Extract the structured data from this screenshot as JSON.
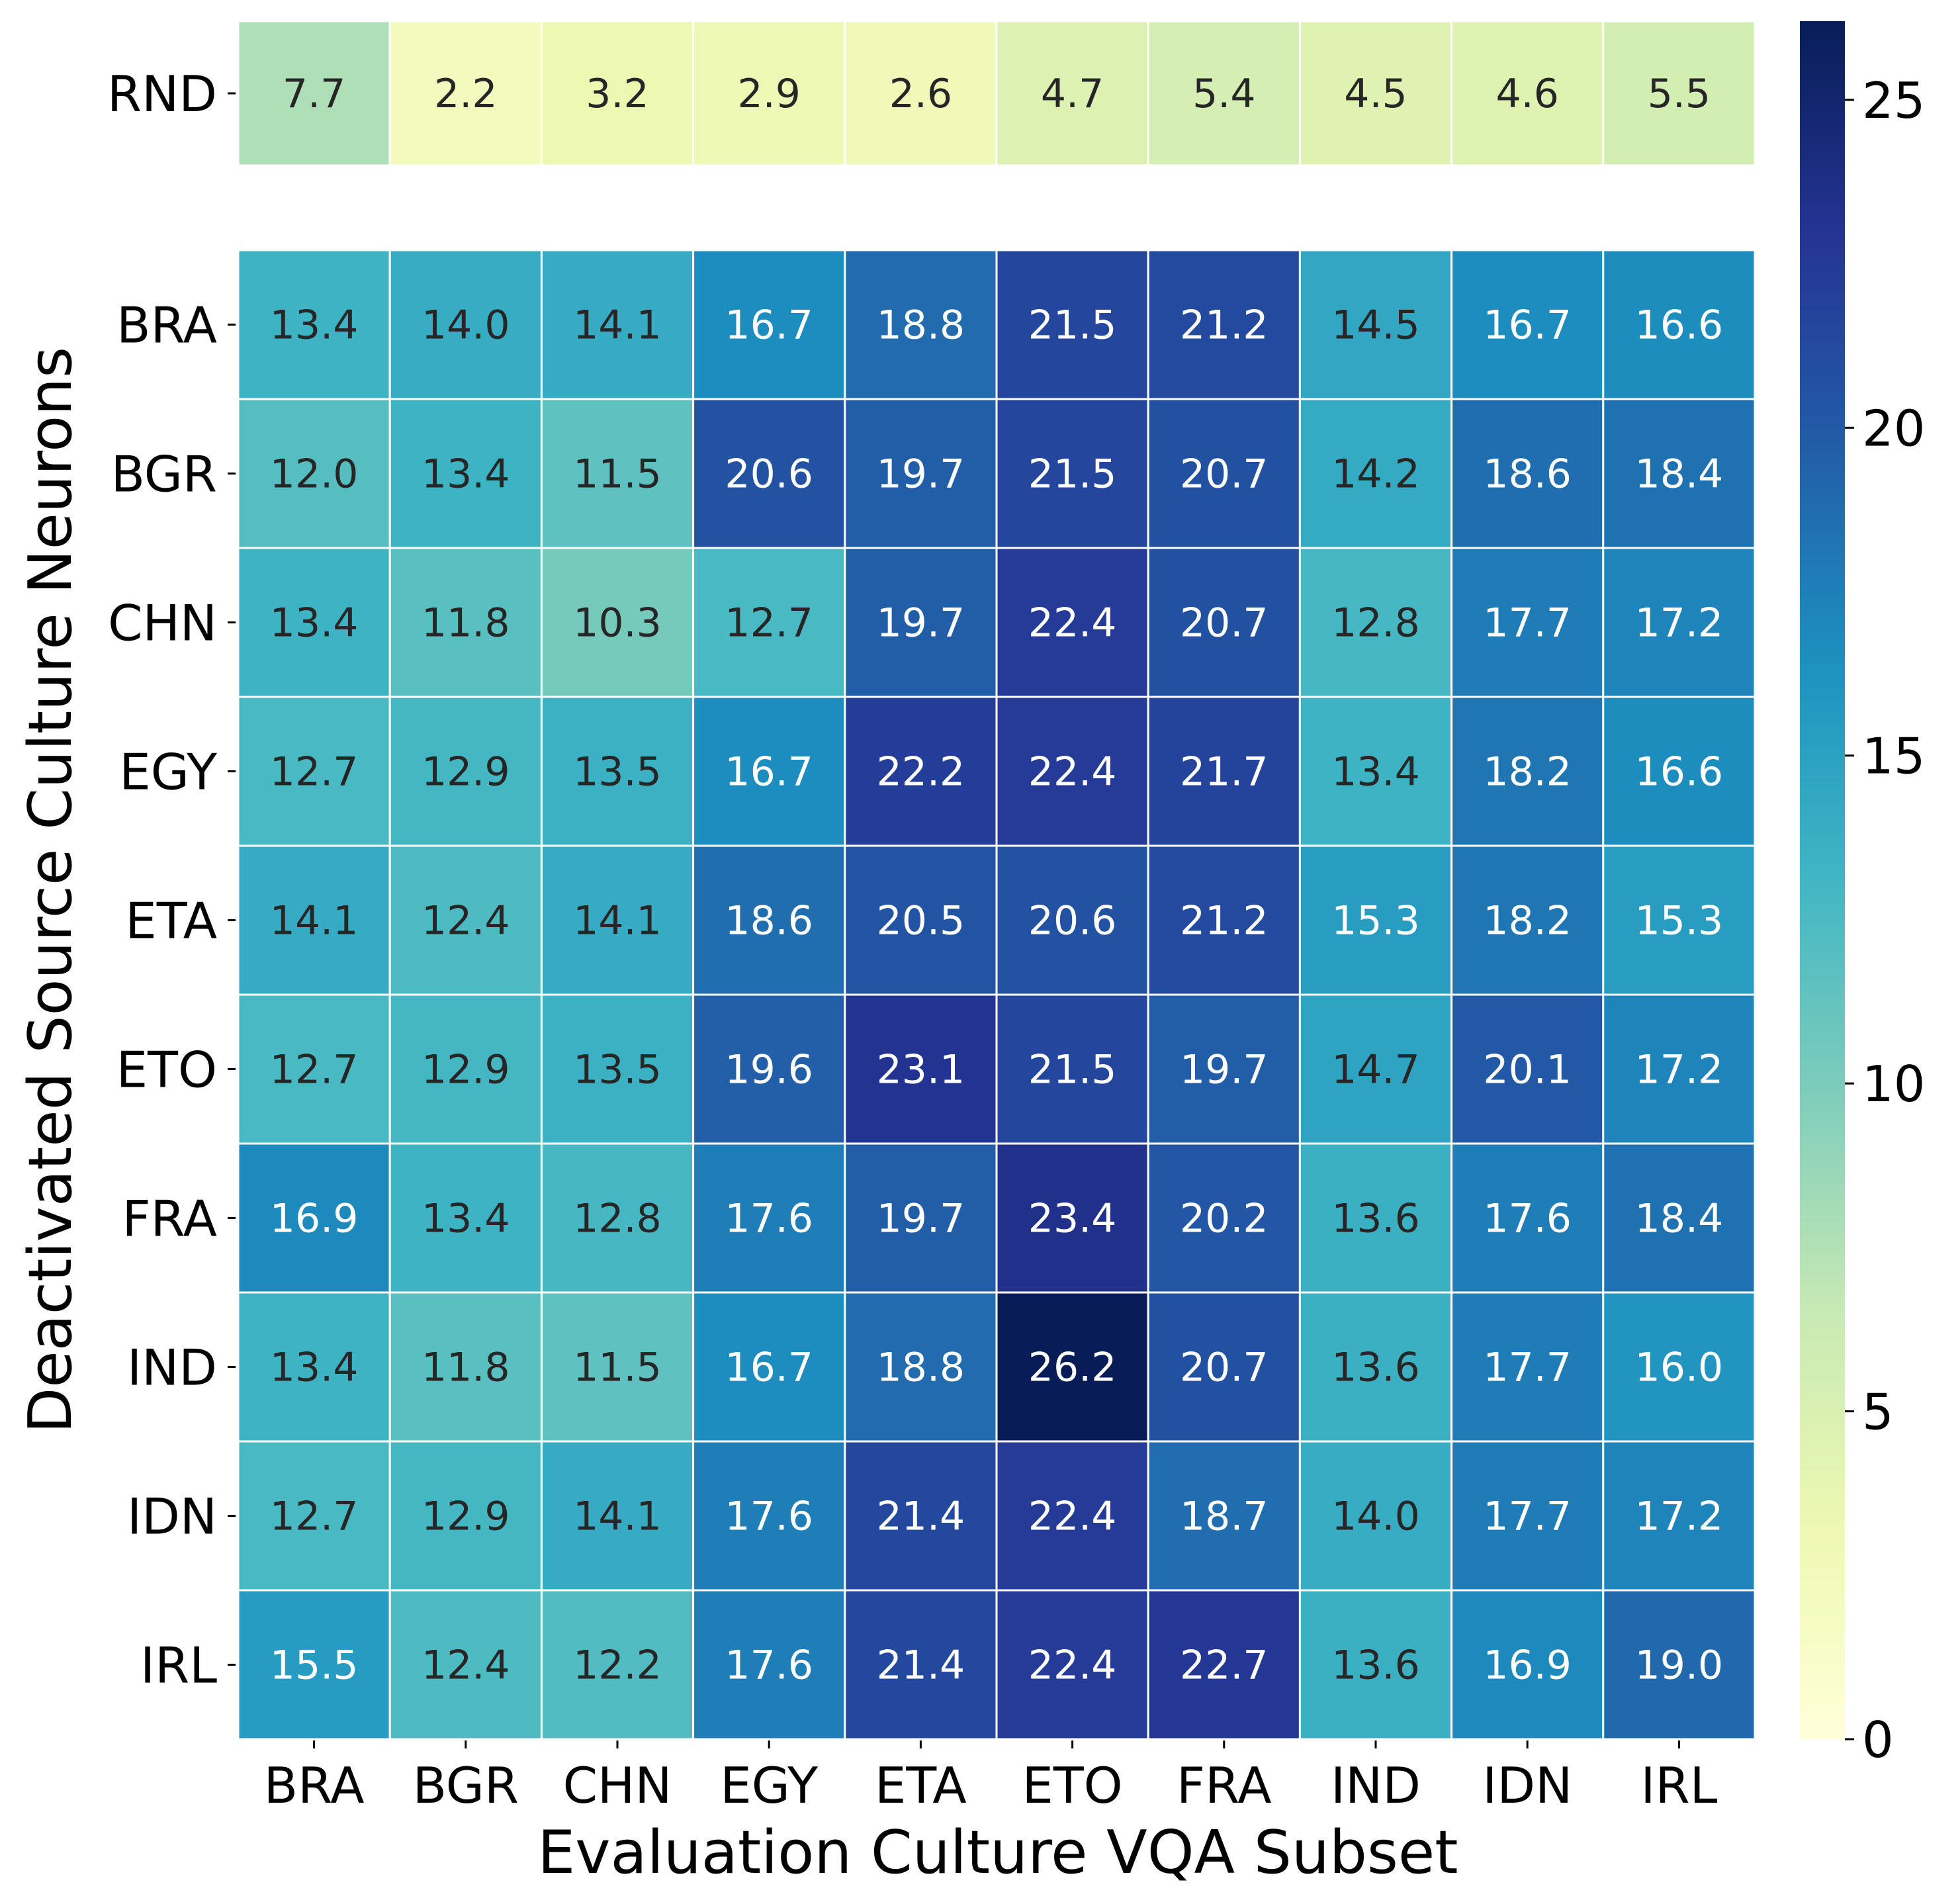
{
  "chart_data": {
    "type": "heatmap",
    "xlabel": "Evaluation Culture VQA Subset",
    "ylabel": "Deactivated Source Culture Neurons",
    "columns": [
      "BRA",
      "BGR",
      "CHN",
      "EGY",
      "ETA",
      "ETO",
      "FRA",
      "IND",
      "IDN",
      "IRL"
    ],
    "random_row": {
      "label": "RND",
      "values": [
        7.7,
        2.2,
        3.2,
        2.9,
        2.6,
        4.7,
        5.4,
        4.5,
        4.6,
        5.5
      ]
    },
    "rows": [
      {
        "label": "BRA",
        "values": [
          13.4,
          14.0,
          14.1,
          16.7,
          18.8,
          21.5,
          21.2,
          14.5,
          16.7,
          16.6
        ]
      },
      {
        "label": "BGR",
        "values": [
          12.0,
          13.4,
          11.5,
          20.6,
          19.7,
          21.5,
          20.7,
          14.2,
          18.6,
          18.4
        ]
      },
      {
        "label": "CHN",
        "values": [
          13.4,
          11.8,
          10.3,
          12.7,
          19.7,
          22.4,
          20.7,
          12.8,
          17.7,
          17.2
        ]
      },
      {
        "label": "EGY",
        "values": [
          12.7,
          12.9,
          13.5,
          16.7,
          22.2,
          22.4,
          21.7,
          13.4,
          18.2,
          16.6
        ]
      },
      {
        "label": "ETA",
        "values": [
          14.1,
          12.4,
          14.1,
          18.6,
          20.5,
          20.6,
          21.2,
          15.3,
          18.2,
          15.3
        ]
      },
      {
        "label": "ETO",
        "values": [
          12.7,
          12.9,
          13.5,
          19.6,
          23.1,
          21.5,
          19.7,
          14.7,
          20.1,
          17.2
        ]
      },
      {
        "label": "FRA",
        "values": [
          16.9,
          13.4,
          12.8,
          17.6,
          19.7,
          23.4,
          20.2,
          13.6,
          17.6,
          18.4
        ]
      },
      {
        "label": "IND",
        "values": [
          13.4,
          11.8,
          11.5,
          16.7,
          18.8,
          26.2,
          20.7,
          13.6,
          17.7,
          16.0
        ]
      },
      {
        "label": "IDN",
        "values": [
          12.7,
          12.9,
          14.1,
          17.6,
          21.4,
          22.4,
          18.7,
          14.0,
          17.7,
          17.2
        ]
      },
      {
        "label": "IRL",
        "values": [
          15.5,
          12.4,
          12.2,
          17.6,
          21.4,
          22.4,
          22.7,
          13.6,
          16.9,
          19.0
        ]
      }
    ],
    "colorbar": {
      "colormap": "YlGnBu",
      "range": [
        0,
        26.2
      ],
      "ticks": [
        0,
        5,
        10,
        15,
        20,
        25
      ]
    },
    "cell_format": "one decimal"
  }
}
